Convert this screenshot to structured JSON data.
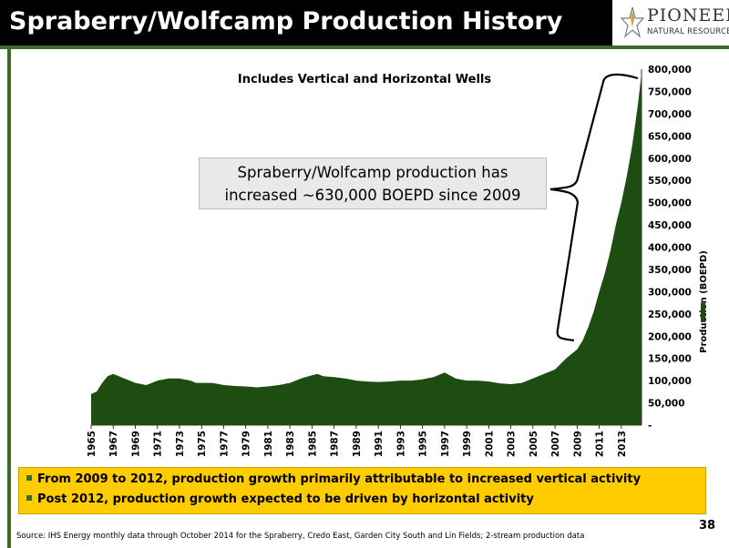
{
  "slide": {
    "title": "Spraberry/Wolfcamp Production History",
    "logo": {
      "name": "PIONEER",
      "tagline": "NATURAL RESOURCES",
      "icon": "pioneer-star-logo-icon"
    },
    "callout": {
      "line1": "Spraberry/Wolfcamp production has",
      "line2": "increased ~630,000 BOEPD since 2009"
    },
    "bullets": [
      "From 2009 to 2012, production growth primarily attributable to increased vertical activity",
      "Post 2012, production growth expected to be driven by horizontal activity"
    ],
    "page_number": "38",
    "source": "Source: IHS Energy monthly data through October 2014 for the Spraberry, Credo East, Garden City South and Lin Fields; 2-stream production data",
    "colors": {
      "accent": "#3b6b2a",
      "area_fill": "#1e4d12",
      "bullet_box": "#ffcc00",
      "title_bar": "#000000"
    }
  },
  "chart_data": {
    "type": "area",
    "subtitle": "Includes Vertical and Horizontal Wells",
    "ylabel": "Production (BOEPD)",
    "ylim": [
      0,
      800000
    ],
    "y_ticks": [
      "-",
      "50,000",
      "100,000",
      "150,000",
      "200,000",
      "250,000",
      "300,000",
      "350,000",
      "400,000",
      "450,000",
      "500,000",
      "550,000",
      "600,000",
      "650,000",
      "700,000",
      "750,000",
      "800,000"
    ],
    "x_tick_labels": [
      "1965",
      "1967",
      "1969",
      "1971",
      "1973",
      "1975",
      "1977",
      "1979",
      "1981",
      "1983",
      "1985",
      "1987",
      "1989",
      "1991",
      "1993",
      "1995",
      "1997",
      "1999",
      "2001",
      "2003",
      "2005",
      "2007",
      "2009",
      "2011",
      "2013"
    ],
    "xlim": [
      1965,
      2014.83
    ],
    "series": [
      {
        "values_x": [
          1965,
          1965.5,
          1966,
          1966.5,
          1967,
          1967.5,
          1968,
          1968.5,
          1969,
          1970,
          1970.5,
          1971,
          1972,
          1973,
          1974,
          1974.5,
          1975,
          1976,
          1977,
          1978,
          1979,
          1980,
          1981,
          1982,
          1983,
          1984,
          1985,
          1985.5,
          1986,
          1987,
          1988,
          1989,
          1990,
          1991,
          1992,
          1993,
          1994,
          1995,
          1996,
          1997,
          1998,
          1999,
          2000,
          2001,
          2002,
          2003,
          2004,
          2005,
          2006,
          2007,
          2008,
          2008.5,
          2009,
          2009.5,
          2010,
          2010.5,
          2011,
          2011.5,
          2012,
          2012.5,
          2013,
          2013.5,
          2014,
          2014.5,
          2014.83
        ],
        "values": [
          70000,
          75000,
          95000,
          110000,
          115000,
          110000,
          105000,
          100000,
          95000,
          90000,
          95000,
          100000,
          105000,
          105000,
          100000,
          95000,
          95000,
          95000,
          90000,
          88000,
          87000,
          85000,
          87000,
          90000,
          95000,
          105000,
          112000,
          115000,
          110000,
          108000,
          105000,
          100000,
          98000,
          97000,
          98000,
          100000,
          100000,
          103000,
          108000,
          118000,
          105000,
          100000,
          100000,
          98000,
          94000,
          92000,
          95000,
          105000,
          115000,
          125000,
          150000,
          160000,
          170000,
          190000,
          220000,
          255000,
          300000,
          340000,
          390000,
          450000,
          500000,
          560000,
          630000,
          720000,
          790000
        ]
      }
    ]
  }
}
